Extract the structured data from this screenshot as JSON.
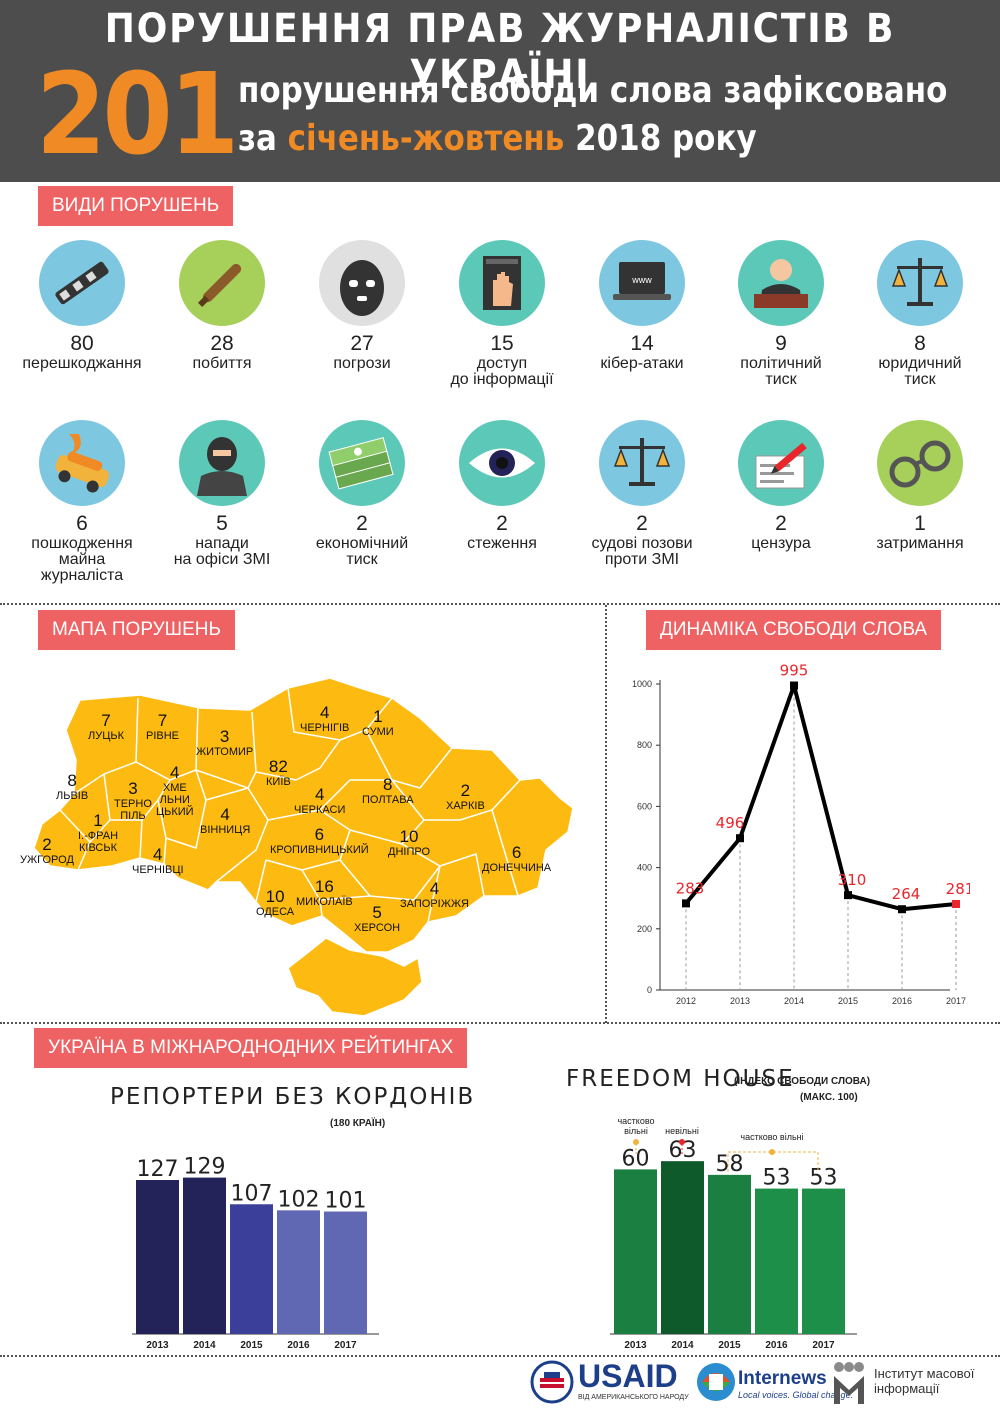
{
  "header": {
    "title": "ПОРУШЕННЯ ПРАВ ЖУРНАЛІСТІВ В УКРАЇНІ",
    "big_number": "201",
    "line1": "порушення свободи слова зафіксовано",
    "line2_pre": "за ",
    "line2_accent": "січень-жовтень",
    "line2_post": " 2018 року"
  },
  "sections": {
    "types": "ВИДИ ПОРУШЕНЬ",
    "map": "МАПА ПОРУШЕНЬ",
    "dynamics": "ДИНАМІКА СВОБОДИ СЛОВА",
    "ratings": "УКРАЇНА В МІЖНАРОДНОДНИХ РЕЙТИНГАХ"
  },
  "categories": [
    {
      "value": "80",
      "label": "перешкоджання",
      "icon": "barrier-icon",
      "color": "#7dc8e0"
    },
    {
      "value": "28",
      "label": "побиття",
      "icon": "bat-icon",
      "color": "#a6d05a"
    },
    {
      "value": "27",
      "label": "погрози",
      "icon": "mask-icon",
      "color": "#e0e0e0"
    },
    {
      "value": "15",
      "label": "доступ\nдо інформації",
      "icon": "stop-hand-icon",
      "color": "#5cc8b8"
    },
    {
      "value": "14",
      "label": "кібер-атаки",
      "icon": "laptop-icon",
      "color": "#7dc8e0"
    },
    {
      "value": "9",
      "label": "політичний\nтиск",
      "icon": "politician-icon",
      "color": "#5cc8b8"
    },
    {
      "value": "8",
      "label": "юридичний\nтиск",
      "icon": "scales-icon",
      "color": "#7dc8e0"
    },
    {
      "value": "6",
      "label": "пошкодження\nмайна\nжурналіста",
      "icon": "burning-car-icon",
      "color": "#7dc8e0"
    },
    {
      "value": "5",
      "label": "напади\nна офіси ЗМІ",
      "icon": "attacker-icon",
      "color": "#5cc8b8"
    },
    {
      "value": "2",
      "label": "економічний\nтиск",
      "icon": "money-icon",
      "color": "#5cc8b8"
    },
    {
      "value": "2",
      "label": "стеження",
      "icon": "eye-icon",
      "color": "#5cc8b8"
    },
    {
      "value": "2",
      "label": "судові позови\nпроти ЗМІ",
      "icon": "scales-icon",
      "color": "#7dc8e0"
    },
    {
      "value": "2",
      "label": "цензура",
      "icon": "pen-paper-icon",
      "color": "#5cc8b8"
    },
    {
      "value": "1",
      "label": "затримання",
      "icon": "handcuffs-icon",
      "color": "#a6d05a"
    }
  ],
  "regions": [
    {
      "name": "ЛУЦЬК",
      "value": "7"
    },
    {
      "name": "РІВНЕ",
      "value": "7"
    },
    {
      "name": "ЖИТОМИР",
      "value": "3"
    },
    {
      "name": "ЧЕРНІГІВ",
      "value": "4"
    },
    {
      "name": "СУМИ",
      "value": "1"
    },
    {
      "name": "ЛЬВІВ",
      "value": "8"
    },
    {
      "name": "ТЕРНО\nПІЛЬ",
      "value": "3"
    },
    {
      "name": "ХМЕ\nЛЬНИ\nЦЬКИЙ",
      "value": "4"
    },
    {
      "name": "КИЇВ",
      "value": "82"
    },
    {
      "name": "ПОЛТАВА",
      "value": "8"
    },
    {
      "name": "ХАРКІВ",
      "value": "2"
    },
    {
      "name": "ЧЕРКАСИ",
      "value": "4"
    },
    {
      "name": "ВІННИЦЯ",
      "value": "4"
    },
    {
      "name": "І.-ФРАН\nКІВСЬК",
      "value": "1"
    },
    {
      "name": "УЖГОРОД",
      "value": "2"
    },
    {
      "name": "ЧЕРНІВЦІ",
      "value": "4"
    },
    {
      "name": "КРОПИВНИЦЬКИЙ",
      "value": "6"
    },
    {
      "name": "ДНІПРО",
      "value": "10"
    },
    {
      "name": "ДОНЕЧЧИНА",
      "value": "6"
    },
    {
      "name": "ОДЕСА",
      "value": "10"
    },
    {
      "name": "МИКОЛАЇВ",
      "value": "16"
    },
    {
      "name": "ЗАПОРІЖЖЯ",
      "value": "4"
    },
    {
      "name": "ХЕРСОН",
      "value": "5"
    }
  ],
  "colors": {
    "header_bg": "#4d4d4d",
    "accent_orange": "#f08a24",
    "tag_red": "#ee6263",
    "map_yellow": "#fdbb11",
    "line_red": "#e8262b",
    "rsf_dark": "#23235a",
    "rsf_mid": "#3b3f9a",
    "rsf_light": "#6068b4",
    "fh_green": "#1a7f40",
    "fh_dark": "#0f5a2b",
    "fh_light": "#1e8f48"
  },
  "chart_data": [
    {
      "type": "line",
      "title": "",
      "x": [
        "2012",
        "2013",
        "2014",
        "2015",
        "2016",
        "2017"
      ],
      "values": [
        283,
        496,
        995,
        310,
        264,
        281
      ],
      "ylim": [
        0,
        1000
      ],
      "yticks": [
        0,
        200,
        400,
        600,
        800,
        1000
      ],
      "grid": false,
      "legend": "none"
    },
    {
      "type": "bar",
      "title": "РЕПОРТЕРИ БЕЗ КОРДОНІВ",
      "note": "(180 КРАЇН)",
      "categories": [
        "2013",
        "2014",
        "2015",
        "2016",
        "2017"
      ],
      "values": [
        127,
        129,
        107,
        102,
        101
      ],
      "colors": [
        "#23235a",
        "#23235a",
        "#3b3f9a",
        "#6068b4",
        "#6068b4"
      ]
    },
    {
      "type": "bar",
      "title": "FREEDOM HOUSE",
      "title_note": "(ІНДЕКС СВОБОДИ СЛОВА)",
      "note": "(МАКС. 100)",
      "categories": [
        "2013",
        "2014",
        "2015",
        "2016",
        "2017"
      ],
      "values": [
        60,
        63,
        58,
        53,
        53
      ],
      "colors": [
        "#1a7f40",
        "#0f5a2b",
        "#1a7f40",
        "#1e8f48",
        "#1e8f48"
      ],
      "annotations": [
        "частково\nвільні",
        "невільні",
        "частково вільні"
      ]
    }
  ],
  "footer": {
    "usaid": "USAID",
    "usaid_sub": "ВІД АМЕРИКАНСЬКОГО НАРОДУ",
    "internews": "Internews",
    "internews_sub": "Local voices. Global change.",
    "imi": "Інститут масової\nінформації"
  }
}
